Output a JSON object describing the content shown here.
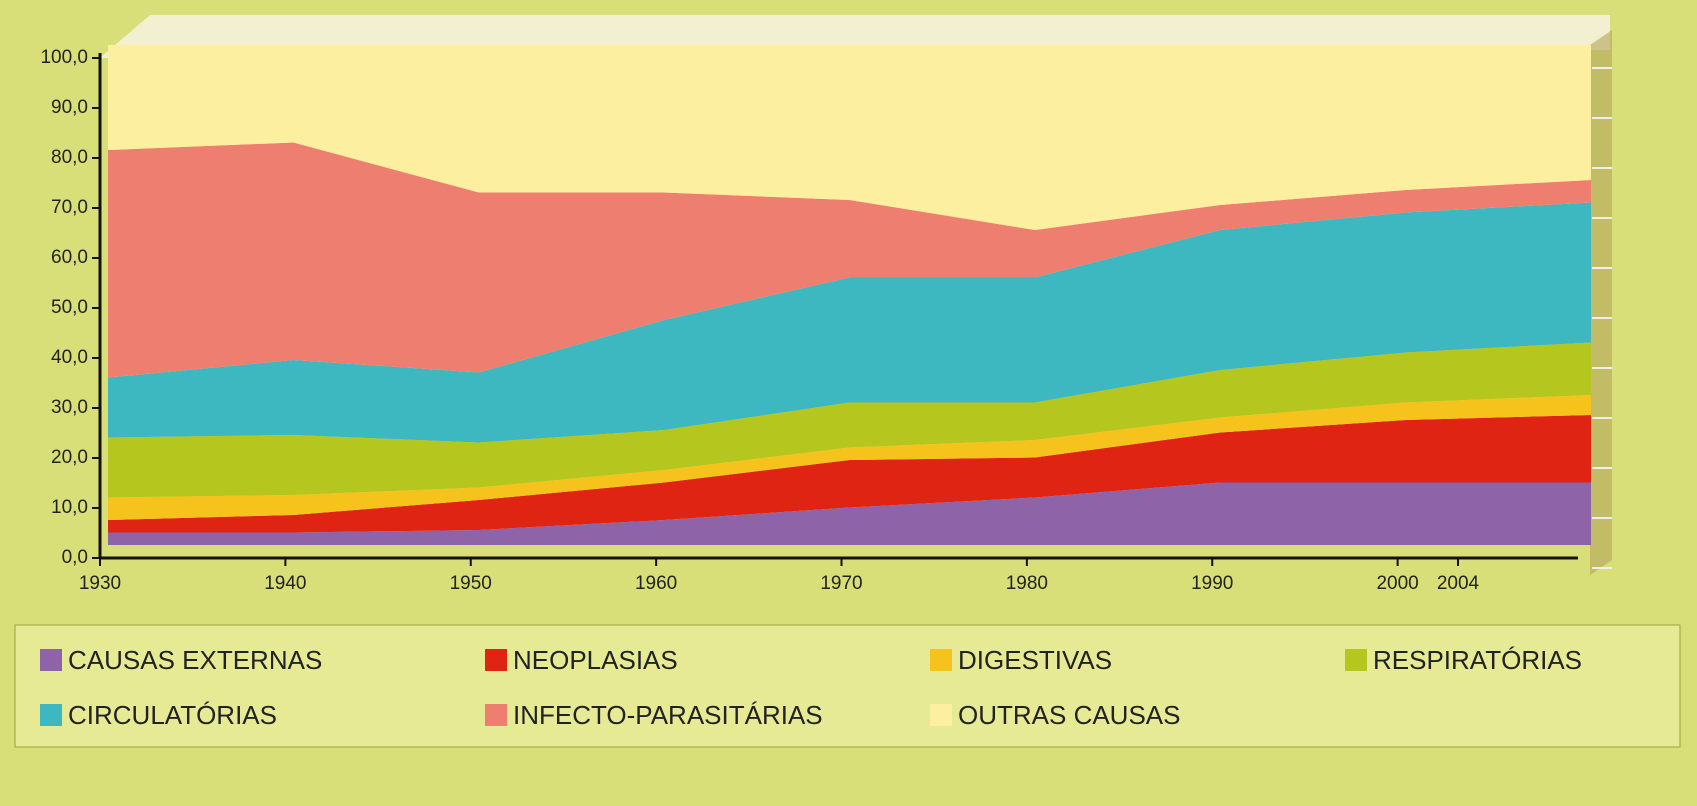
{
  "chart_data": {
    "type": "stacked-area",
    "categories": [
      "1930",
      "1940",
      "1950",
      "1960",
      "1970",
      "1980",
      "1990",
      "2000",
      "2004"
    ],
    "series": [
      {
        "name": "CAUSAS EXTERNAS",
        "color": "#8e63a8",
        "values": [
          2.5,
          2.5,
          3,
          5,
          7.5,
          9.5,
          12.5,
          12.5,
          12.5
        ]
      },
      {
        "name": "NEOPLASIAS",
        "color": "#e02414",
        "values": [
          2.5,
          3.5,
          6,
          7.5,
          9.5,
          8,
          10,
          12.5,
          13.5
        ]
      },
      {
        "name": "DIGESTIVAS",
        "color": "#f6c31c",
        "values": [
          4.5,
          4,
          2.5,
          2.5,
          2.5,
          3.5,
          3,
          3.5,
          4
        ]
      },
      {
        "name": "RESPIRATÓRIAS",
        "color": "#b5c71f",
        "values": [
          12,
          12,
          9,
          8,
          9,
          7.5,
          9.5,
          10,
          10.5
        ]
      },
      {
        "name": "CIRCULATÓRIAS",
        "color": "#3db7c0",
        "values": [
          12,
          15,
          14,
          22,
          25,
          25,
          28,
          28,
          28
        ]
      },
      {
        "name": "INFECTO-PARASITÁRIAS",
        "color": "#ee7f70",
        "values": [
          45.5,
          43.5,
          36,
          25.5,
          15.5,
          9.5,
          5,
          4.5,
          4.5
        ]
      },
      {
        "name": "OUTRAS CAUSAS",
        "color": "#fcf0a0",
        "values": [
          21,
          19.5,
          29.5,
          29.5,
          31,
          37,
          32,
          29,
          27
        ]
      }
    ],
    "ylim": [
      0,
      100
    ],
    "yticks": [
      {
        "value": 0,
        "label": "0,0"
      },
      {
        "value": 10,
        "label": "10,0"
      },
      {
        "value": 20,
        "label": "20,0"
      },
      {
        "value": 30,
        "label": "30,0"
      },
      {
        "value": 40,
        "label": "40,0"
      },
      {
        "value": 50,
        "label": "50,0"
      },
      {
        "value": 60,
        "label": "60,0"
      },
      {
        "value": 70,
        "label": "70,0"
      },
      {
        "value": 80,
        "label": "80,0"
      },
      {
        "value": 90,
        "label": "90,0"
      },
      {
        "value": 100,
        "label": "100,0"
      }
    ]
  }
}
